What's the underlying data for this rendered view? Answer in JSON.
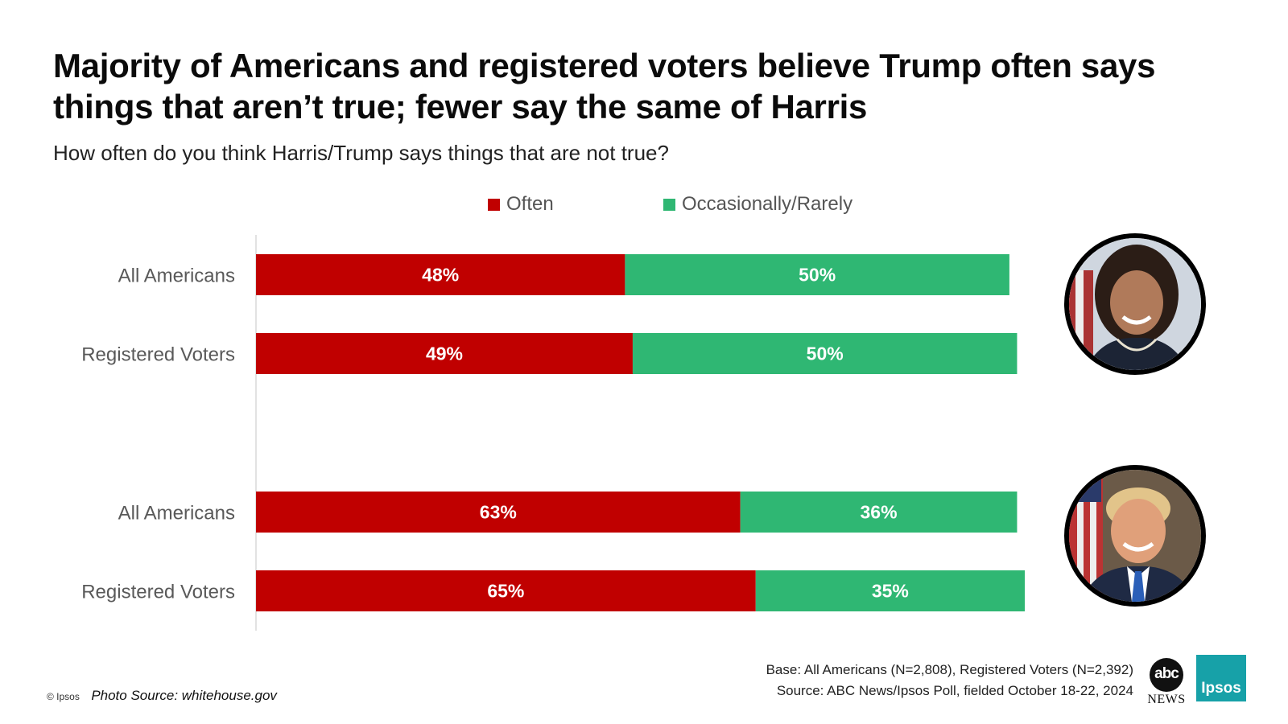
{
  "title_lines": [
    "Majority of Americans and registered voters believe Trump often says",
    "things that aren’t true; fewer say the same of Harris"
  ],
  "subtitle": "How often do you think Harris/Trump says things that are not true?",
  "colors": {
    "often": "#c00000",
    "occasionally": "#2fb773"
  },
  "chart_data": {
    "type": "bar",
    "orientation": "horizontal-stacked",
    "title": "Majority of Americans and registered voters believe Trump often says things that aren’t true; fewer say the same of Harris",
    "subtitle": "How often do you think Harris/Trump says things that are not true?",
    "legend": [
      "Often",
      "Occasionally/Rarely"
    ],
    "legend_position": "top",
    "xlim": [
      0,
      100
    ],
    "groups": [
      {
        "subject": "Harris",
        "categories": [
          "All Americans",
          "Registered Voters"
        ],
        "series": [
          {
            "name": "Often",
            "values": [
              48,
              49
            ],
            "labels": [
              "48%",
              "49%"
            ]
          },
          {
            "name": "Occasionally/Rarely",
            "values": [
              50,
              50
            ],
            "labels": [
              "50%",
              "50%"
            ]
          }
        ]
      },
      {
        "subject": "Trump",
        "categories": [
          "All Americans",
          "Registered Voters"
        ],
        "series": [
          {
            "name": "Often",
            "values": [
              63,
              65
            ],
            "labels": [
              "63%",
              "65%"
            ]
          },
          {
            "name": "Occasionally/Rarely",
            "values": [
              36,
              35
            ],
            "labels": [
              "36%",
              "35%"
            ]
          }
        ]
      }
    ]
  },
  "footer": {
    "copyright": "© Ipsos",
    "photo_source": "Photo Source: whitehouse.gov",
    "base": "Base: All Americans (N=2,808), Registered Voters (N=2,392)",
    "source": "Source: ABC News/Ipsos Poll, fielded October 18-22, 2024"
  },
  "logos": {
    "abc_top": "abc",
    "abc_bottom": "NEWS",
    "ipsos": "Ipsos"
  }
}
